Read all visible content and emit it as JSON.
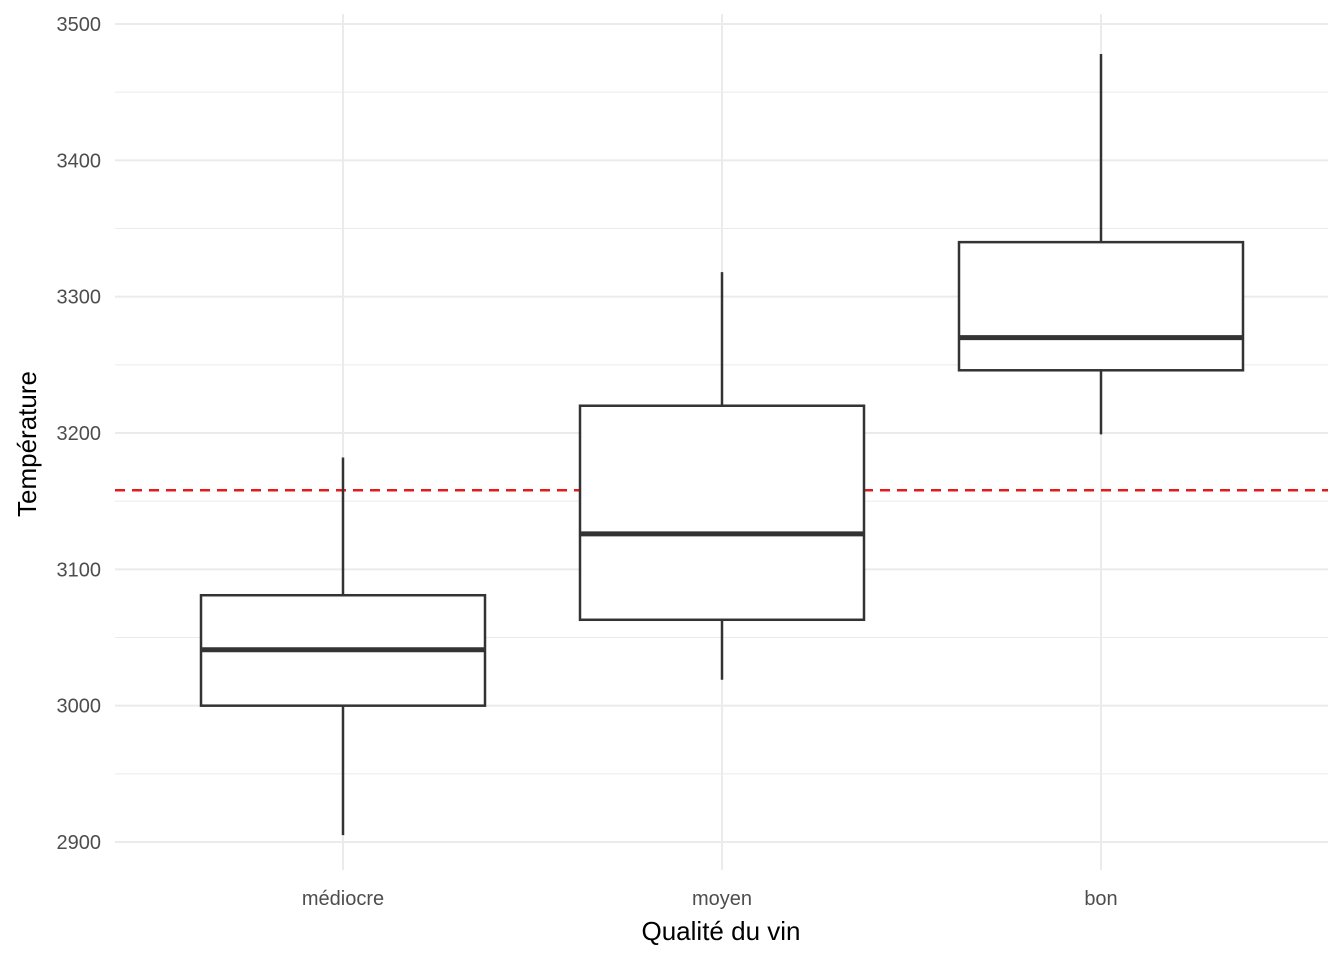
{
  "chart_data": {
    "type": "boxplot",
    "title": "",
    "xlabel": "Qualité du vin",
    "ylabel": "Température",
    "categories": [
      "médiocre",
      "moyen",
      "bon"
    ],
    "boxes": [
      {
        "category": "médiocre",
        "whisker_low": 2905,
        "q1": 3000,
        "median": 3041,
        "q3": 3081,
        "whisker_high": 3182
      },
      {
        "category": "moyen",
        "whisker_low": 3019,
        "q1": 3063,
        "median": 3126,
        "q3": 3220,
        "whisker_high": 3318
      },
      {
        "category": "bon",
        "whisker_low": 3199,
        "q1": 3246,
        "median": 3270,
        "q3": 3340,
        "whisker_high": 3478
      }
    ],
    "reference_line": {
      "value": 3158,
      "color": "#e41a1c",
      "style": "dashed"
    },
    "ylim": [
      2880,
      3512
    ],
    "y_ticks": [
      2900,
      3000,
      3100,
      3200,
      3300,
      3400,
      3500
    ],
    "y_minor_ticks": [
      2950,
      3050,
      3150,
      3250,
      3350,
      3450
    ],
    "grid": true,
    "legend": "none",
    "colors": {
      "box_outline": "#333333",
      "grid": "#ebebeb",
      "reference_line": "#e41a1c"
    }
  }
}
